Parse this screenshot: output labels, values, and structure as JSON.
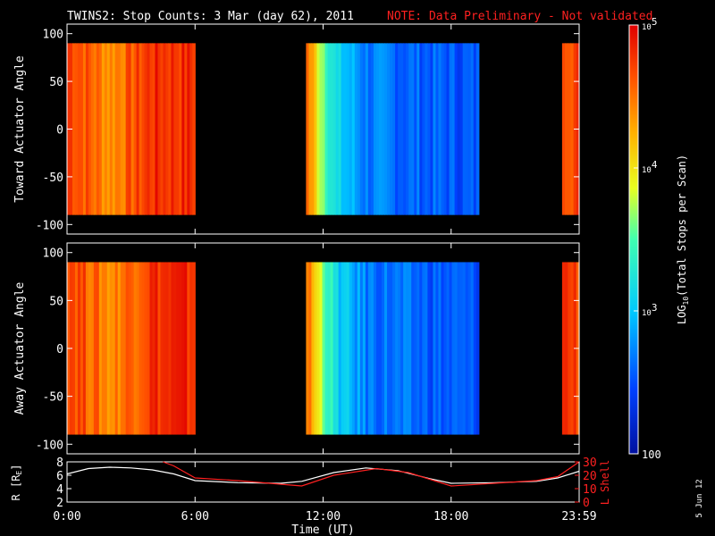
{
  "title": "TWINS2: Stop Counts:  3 Mar (day  62), 2011",
  "note": "NOTE: Data Preliminary - Not validated",
  "side_date": "5 Jun 12",
  "colors": {
    "background": "#000000",
    "text": "#ffffff",
    "note": "#ff2020",
    "l_shell": "#ff2020",
    "r_line": "#ffffff"
  },
  "chart_data": [
    {
      "type": "heatmap",
      "ylabel": "Toward Actuator Angle",
      "ylim": [
        -110,
        110
      ],
      "yticks": [
        "100",
        "50",
        "0",
        "-50",
        "-100"
      ],
      "ytick_values": [
        100,
        50,
        0,
        -50,
        -100
      ],
      "angle_range": [
        -90,
        90
      ],
      "data_intervals_hours": [
        [
          0.0,
          6.0
        ],
        [
          11.2,
          19.3
        ],
        [
          23.2,
          24.0
        ]
      ],
      "log10_counts_profile": [
        {
          "hour": 0.0,
          "value": 4.8
        },
        {
          "hour": 1.0,
          "value": 4.6
        },
        {
          "hour": 2.0,
          "value": 4.4
        },
        {
          "hour": 3.0,
          "value": 4.6
        },
        {
          "hour": 4.0,
          "value": 4.8
        },
        {
          "hour": 6.0,
          "value": 4.8
        },
        {
          "hour": 11.2,
          "value": 4.6
        },
        {
          "hour": 11.8,
          "value": 3.9
        },
        {
          "hour": 12.6,
          "value": 3.1
        },
        {
          "hour": 14.0,
          "value": 2.7
        },
        {
          "hour": 16.0,
          "value": 2.6
        },
        {
          "hour": 19.3,
          "value": 2.5
        },
        {
          "hour": 23.2,
          "value": 4.8
        },
        {
          "hour": 24.0,
          "value": 4.7
        }
      ]
    },
    {
      "type": "heatmap",
      "ylabel": "Away Actuator Angle",
      "ylim": [
        -110,
        110
      ],
      "yticks": [
        "100",
        "50",
        "0",
        "-50",
        "-100"
      ],
      "ytick_values": [
        100,
        50,
        0,
        -50,
        -100
      ],
      "angle_range": [
        -90,
        90
      ],
      "data_intervals_hours": [
        [
          0.0,
          6.0
        ],
        [
          11.2,
          19.3
        ],
        [
          23.2,
          24.0
        ]
      ],
      "log10_counts_profile": [
        {
          "hour": 0.0,
          "value": 4.8
        },
        {
          "hour": 1.0,
          "value": 4.6
        },
        {
          "hour": 2.0,
          "value": 4.4
        },
        {
          "hour": 3.0,
          "value": 4.6
        },
        {
          "hour": 4.0,
          "value": 4.8
        },
        {
          "hour": 6.0,
          "value": 4.8
        },
        {
          "hour": 11.2,
          "value": 4.6
        },
        {
          "hour": 11.8,
          "value": 3.9
        },
        {
          "hour": 12.6,
          "value": 3.1
        },
        {
          "hour": 14.0,
          "value": 2.7
        },
        {
          "hour": 16.0,
          "value": 2.6
        },
        {
          "hour": 19.3,
          "value": 2.5
        },
        {
          "hour": 23.2,
          "value": 4.8
        },
        {
          "hour": 24.0,
          "value": 4.7
        }
      ]
    },
    {
      "type": "line",
      "ylabel": "R [R",
      "ylabel_sub": "E",
      "ylabel_close": "]",
      "ylim": [
        2,
        8
      ],
      "yticks": [
        "8",
        "6",
        "4",
        "2"
      ],
      "ytick_values": [
        8,
        6,
        4,
        2
      ],
      "y2label": "L Shell",
      "y2lim": [
        0,
        30
      ],
      "y2ticks": [
        "30",
        "20",
        "10",
        "0"
      ],
      "y2tick_values": [
        30,
        20,
        10,
        0
      ],
      "xlabel": "Time (UT)",
      "xlim": [
        0,
        24
      ],
      "xticks": [
        "0:00",
        "6:00",
        "12:00",
        "18:00",
        "23:59"
      ],
      "xtick_values": [
        0,
        6,
        12,
        18,
        24
      ],
      "series": [
        {
          "axis": "left",
          "points": [
            {
              "hour": 0.0,
              "value": 6.2
            },
            {
              "hour": 1.0,
              "value": 7.0
            },
            {
              "hour": 2.0,
              "value": 7.2
            },
            {
              "hour": 3.0,
              "value": 7.1
            },
            {
              "hour": 4.0,
              "value": 6.8
            },
            {
              "hour": 5.0,
              "value": 6.2
            },
            {
              "hour": 6.0,
              "value": 5.2
            },
            {
              "hour": 8.0,
              "value": 4.9
            },
            {
              "hour": 10.0,
              "value": 4.8
            },
            {
              "hour": 11.0,
              "value": 5.1
            },
            {
              "hour": 12.5,
              "value": 6.4
            },
            {
              "hour": 14.0,
              "value": 7.1
            },
            {
              "hour": 15.5,
              "value": 6.7
            },
            {
              "hour": 17.0,
              "value": 5.5
            },
            {
              "hour": 18.0,
              "value": 4.8
            },
            {
              "hour": 20.0,
              "value": 4.9
            },
            {
              "hour": 22.0,
              "value": 5.1
            },
            {
              "hour": 23.0,
              "value": 5.6
            },
            {
              "hour": 24.0,
              "value": 6.6
            }
          ]
        },
        {
          "axis": "right",
          "points": [
            {
              "hour": 4.5,
              "value": 30.0
            },
            {
              "hour": 5.0,
              "value": 27.0
            },
            {
              "hour": 6.0,
              "value": 18.0
            },
            {
              "hour": 8.0,
              "value": 16.0
            },
            {
              "hour": 11.0,
              "value": 12.0
            },
            {
              "hour": 12.5,
              "value": 20.0
            },
            {
              "hour": 14.5,
              "value": 25.0
            },
            {
              "hour": 16.0,
              "value": 22.0
            },
            {
              "hour": 18.0,
              "value": 12.0
            },
            {
              "hour": 20.0,
              "value": 14.0
            },
            {
              "hour": 22.0,
              "value": 16.0
            },
            {
              "hour": 23.0,
              "value": 19.0
            },
            {
              "hour": 24.0,
              "value": 30.0
            }
          ]
        }
      ]
    }
  ],
  "colorbar": {
    "label": "LOG",
    "label_sub": "10",
    "label_rest": "(Total Stops per Scan)",
    "range_log10": [
      2,
      5
    ],
    "ticks": [
      {
        "value": 5,
        "base": "10",
        "exp": "5"
      },
      {
        "value": 4,
        "base": "10",
        "exp": "4"
      },
      {
        "value": 3,
        "base": "10",
        "exp": "3"
      },
      {
        "value": 2,
        "base": "100",
        "exp": ""
      }
    ]
  }
}
